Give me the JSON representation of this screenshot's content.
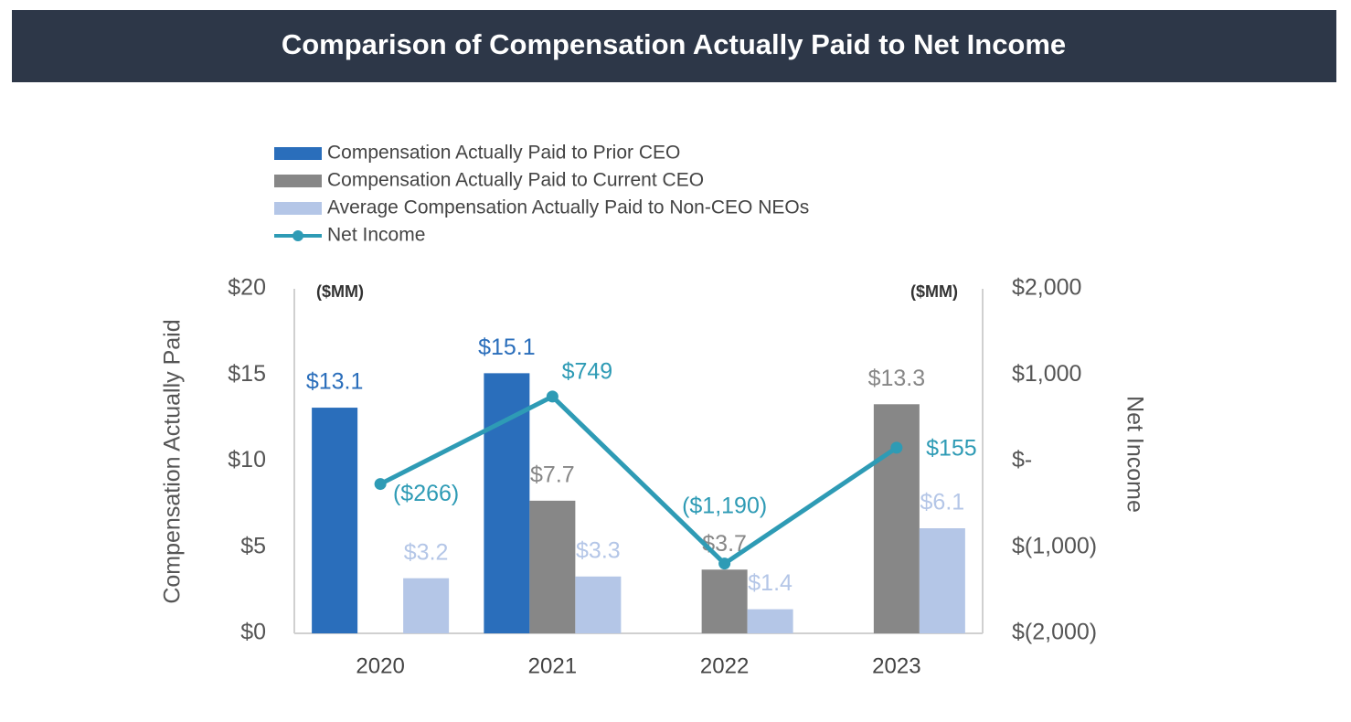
{
  "chart_data": {
    "type": "bar",
    "title": "Comparison of Compensation Actually Paid to Net Income",
    "y_label": "Compensation Actually Paid",
    "y2_label": "Net Income",
    "y_unit_note": "($MM)",
    "y2_unit_note": "($MM)",
    "categories": [
      "2020",
      "2021",
      "2022",
      "2023"
    ],
    "series": [
      {
        "name": "Compensation Actually Paid to Prior CEO",
        "type": "bar",
        "color": "#2a6ebb",
        "values": [
          13.1,
          15.1,
          null,
          null
        ],
        "value_labels": [
          "$13.1",
          "$15.1",
          null,
          null
        ]
      },
      {
        "name": "Compensation Actually Paid to Current CEO",
        "type": "bar",
        "color": "#878787",
        "values": [
          null,
          7.7,
          3.7,
          13.3
        ],
        "value_labels": [
          null,
          "$7.7",
          "$3.7",
          "$13.3"
        ]
      },
      {
        "name": "Average Compensation Actually Paid to Non-CEO NEOs",
        "type": "bar",
        "color": "#b4c6e7",
        "values": [
          3.2,
          3.3,
          1.4,
          6.1
        ],
        "value_labels": [
          "$3.2",
          "$3.3",
          "$1.4",
          "$6.1"
        ]
      },
      {
        "name": "Net Income",
        "type": "line",
        "axis": "y2",
        "color": "#2e9bb5",
        "values": [
          -266,
          749,
          -1190,
          155
        ],
        "value_labels": [
          "($266)",
          "$749",
          "($1,190)",
          "$155"
        ]
      }
    ],
    "ylim": [
      0,
      20
    ],
    "yticks": [
      {
        "value": 0,
        "label": "$0"
      },
      {
        "value": 5,
        "label": "$5"
      },
      {
        "value": 10,
        "label": "$10"
      },
      {
        "value": 15,
        "label": "$15"
      },
      {
        "value": 20,
        "label": "$20"
      }
    ],
    "y2lim": [
      -2000,
      2000
    ],
    "y2ticks": [
      {
        "value": -2000,
        "label": "$(2,000)"
      },
      {
        "value": -1000,
        "label": "$(1,000)"
      },
      {
        "value": 0,
        "label": "$-"
      },
      {
        "value": 1000,
        "label": "$1,000"
      },
      {
        "value": 2000,
        "label": "$2,000"
      }
    ],
    "grid": false
  }
}
